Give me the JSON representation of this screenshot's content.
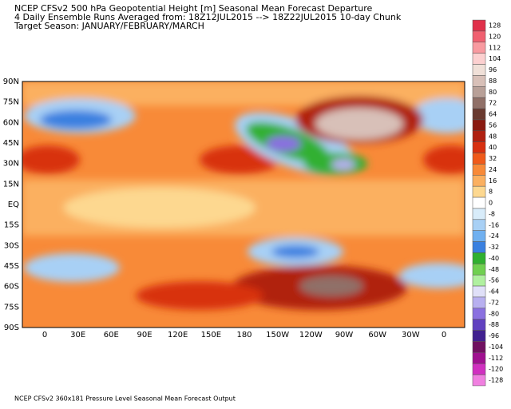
{
  "header": {
    "lines": [
      "NCEP CFSv2 500 hPa Geopotential Height [m] Seasonal Mean Forecast Departure",
      "4 Daily Ensemble Runs Averaged from: 18Z12JUL2015 --> 18Z22JUL2015 10-day Chunk",
      "Target Season: JANUARY/FEBRUARY/MARCH"
    ]
  },
  "map": {
    "lat_labels": [
      "90N",
      "75N",
      "60N",
      "45N",
      "30N",
      "15N",
      "EQ",
      "15S",
      "30S",
      "45S",
      "60S",
      "75S",
      "90S"
    ],
    "lon_labels": [
      "0",
      "30E",
      "60E",
      "90E",
      "120E",
      "150E",
      "180",
      "150W",
      "120W",
      "90W",
      "60W",
      "30W",
      "0"
    ]
  },
  "colorbar": {
    "labels": [
      128,
      120,
      112,
      104,
      96,
      88,
      80,
      72,
      64,
      56,
      48,
      40,
      32,
      24,
      16,
      8,
      0,
      -8,
      -16,
      -24,
      -32,
      -40,
      -48,
      -56,
      -64,
      -72,
      -80,
      -88,
      -96,
      -104,
      -112,
      -120,
      -128
    ],
    "colors": [
      "#e0304a",
      "#f06070",
      "#f89aa0",
      "#fcd0d0",
      "#f0e0d8",
      "#d8c0b8",
      "#b8a098",
      "#907068",
      "#6a3a30",
      "#8a1a10",
      "#b02010",
      "#d83010",
      "#f05a1a",
      "#f88a38",
      "#fbb060",
      "#fdd890",
      "#ffffff",
      "#d8ecfa",
      "#a8d0f5",
      "#70b0f0",
      "#3a80e0",
      "#30b030",
      "#70d050",
      "#b0f0a0",
      "#e0e0f8",
      "#b8b0f0",
      "#8a70e0",
      "#6040c0",
      "#402090",
      "#701060",
      "#a01090",
      "#d030c0",
      "#f080e0"
    ]
  },
  "footer": {
    "text": "NCEP CFSv2 360x181 Pressure Level Seasonal Mean Forecast Output"
  }
}
